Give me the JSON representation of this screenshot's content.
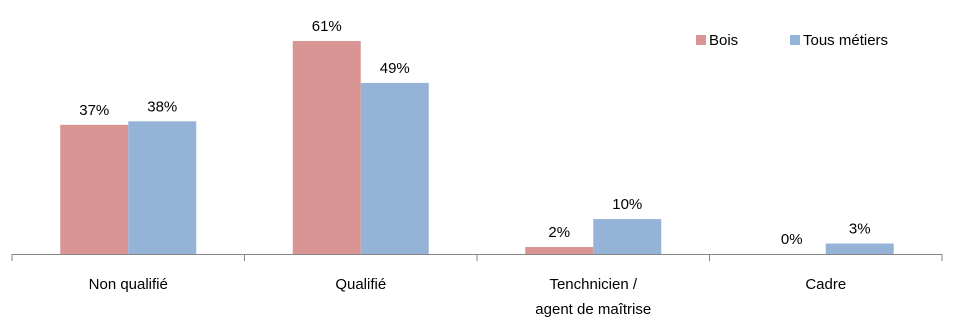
{
  "chart_data": {
    "type": "bar",
    "categories": [
      [
        "Non qualifié"
      ],
      [
        "Qualifié"
      ],
      [
        "Tenchnicien /",
        "agent de maîtrise"
      ],
      [
        "Cadre"
      ]
    ],
    "series": [
      {
        "name": "Bois",
        "values": [
          37,
          61,
          2,
          0
        ],
        "labels": [
          "37%",
          "61%",
          "2%",
          "0%"
        ],
        "color": "#d99594"
      },
      {
        "name": "Tous métiers",
        "values": [
          38,
          49,
          10,
          3
        ],
        "labels": [
          "38%",
          "49%",
          "10%",
          "3%"
        ],
        "color": "#95b3d7"
      }
    ],
    "ylim": [
      0,
      65
    ],
    "unit": "%",
    "grid": false,
    "legend_position": "top-right",
    "axis_color": "#868686"
  }
}
